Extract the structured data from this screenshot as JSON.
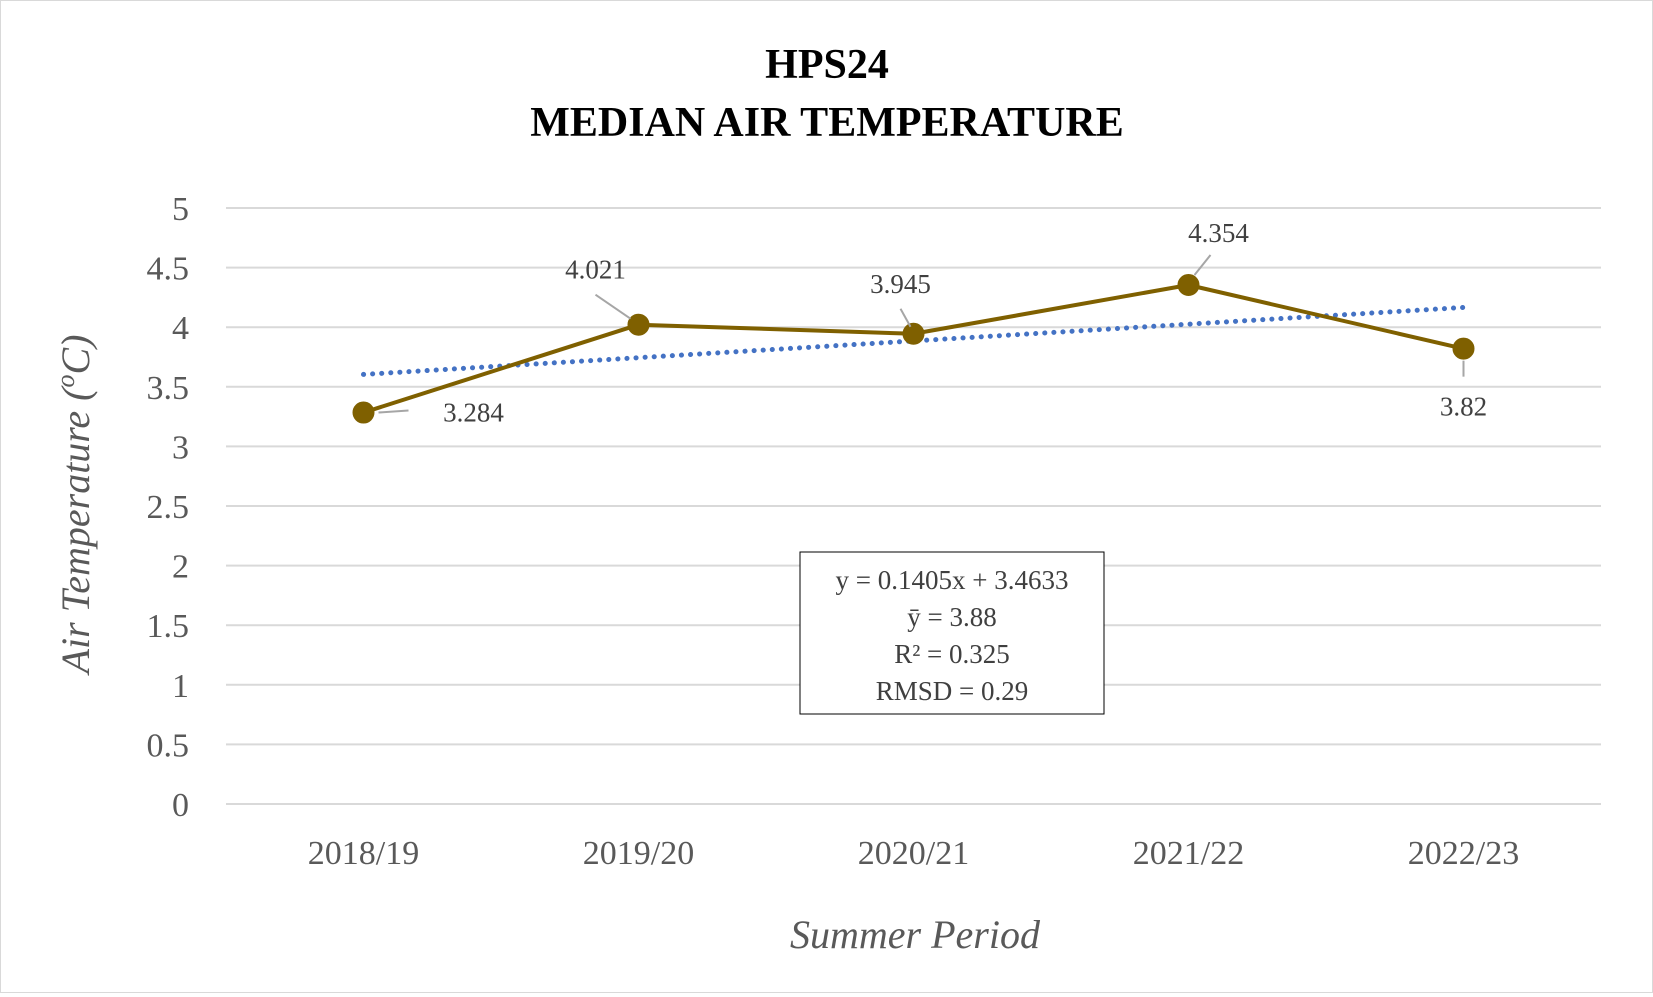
{
  "chart_data": {
    "type": "line",
    "title": [
      "HPS24",
      "MEDIAN AIR TEMPERATURE"
    ],
    "xlabel": "Summer Period",
    "ylabel": "Air Temperature (",
    "ylabel_sup": "o",
    "ylabel_unit": "C)",
    "categories": [
      "2018/19",
      "2019/20",
      "2020/21",
      "2021/22",
      "2022/23"
    ],
    "series": [
      {
        "values": [
          3.284,
          4.021,
          3.945,
          4.354,
          3.82
        ],
        "labels": [
          "3.284",
          "4.021",
          "3.945",
          "4.354",
          "3.82"
        ],
        "color": "#7f6000"
      },
      {
        "kind": "trendline-linear",
        "slope": 0.1405,
        "intercept": 3.4633,
        "style": "dotted",
        "color": "#4472c4"
      }
    ],
    "ylim": [
      0,
      5
    ],
    "yticks": [
      0,
      0.5,
      1,
      1.5,
      2,
      2.5,
      3,
      3.5,
      4,
      4.5,
      5
    ],
    "ytick_labels": [
      "0",
      "0.5",
      "1",
      "1.5",
      "2",
      "2.5",
      "3",
      "3.5",
      "4",
      "4.5",
      "5"
    ],
    "grid": true,
    "legend": "none",
    "annotation": [
      "y = 0.1405x + 3.4633",
      "ȳ = 3.88",
      "R² = 0.325",
      "RMSD = 0.29"
    ]
  }
}
